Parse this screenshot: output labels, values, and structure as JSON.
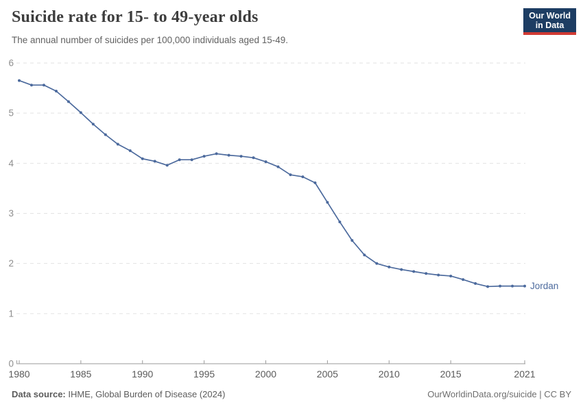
{
  "header": {
    "title": "Suicide rate for 15- to 49-year olds",
    "subtitle": "The annual number of suicides per 100,000 individuals aged 15-49.",
    "logo": {
      "line1": "Our World",
      "line2": "in Data",
      "bg_color": "#1d3d63",
      "stripe_color": "#d13b34"
    }
  },
  "chart_data": {
    "type": "line",
    "title": "Suicide rate for 15- to 49-year olds",
    "xlabel": "",
    "ylabel": "",
    "xlim": [
      1980,
      2021
    ],
    "ylim": [
      0,
      6
    ],
    "x_tick_labels": [
      "1980",
      "1985",
      "1990",
      "1995",
      "2000",
      "2005",
      "2010",
      "2015",
      "2021"
    ],
    "x_ticks": [
      1980,
      1985,
      1990,
      1995,
      2000,
      2005,
      2010,
      2015,
      2021
    ],
    "y_ticks": [
      0,
      1,
      2,
      3,
      4,
      5,
      6
    ],
    "grid": "horizontal-dashed",
    "legend_position": "end-of-line-label",
    "series": [
      {
        "name": "Jordan",
        "color": "#4c6a9d",
        "x": [
          1980,
          1981,
          1982,
          1983,
          1984,
          1985,
          1986,
          1987,
          1988,
          1989,
          1990,
          1991,
          1992,
          1993,
          1994,
          1995,
          1996,
          1997,
          1998,
          1999,
          2000,
          2001,
          2002,
          2003,
          2004,
          2005,
          2006,
          2007,
          2008,
          2009,
          2010,
          2011,
          2012,
          2013,
          2014,
          2015,
          2016,
          2017,
          2018,
          2019,
          2020,
          2021
        ],
        "values": [
          5.65,
          5.56,
          5.56,
          5.44,
          5.23,
          5.01,
          4.78,
          4.57,
          4.38,
          4.25,
          4.09,
          4.04,
          3.96,
          4.07,
          4.07,
          4.14,
          4.19,
          4.16,
          4.14,
          4.11,
          4.03,
          3.93,
          3.77,
          3.73,
          3.61,
          3.22,
          2.83,
          2.46,
          2.17,
          2.0,
          1.93,
          1.88,
          1.84,
          1.8,
          1.77,
          1.75,
          1.68,
          1.6,
          1.54,
          1.55,
          1.55,
          1.55
        ]
      }
    ]
  },
  "footer": {
    "source_label": "Data source:",
    "source_text": " IHME, Global Burden of Disease (2024)",
    "link_text": "OurWorldinData.org/suicide | CC BY"
  }
}
